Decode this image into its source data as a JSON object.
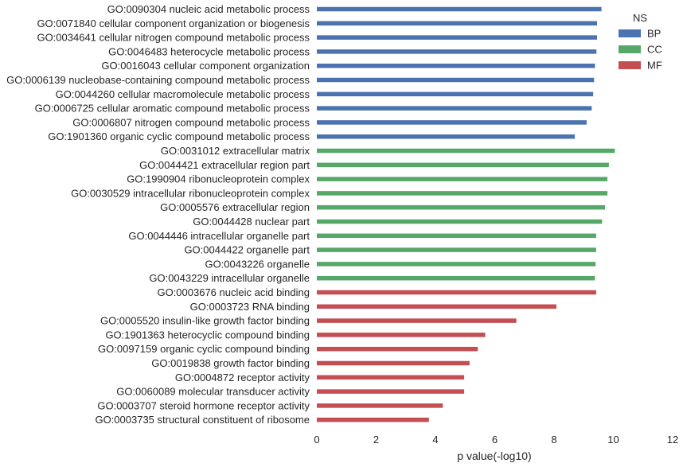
{
  "chart_data": {
    "type": "bar",
    "orientation": "horizontal",
    "xlabel": "p value(-log10)",
    "ylabel": "",
    "xlim": [
      0,
      12
    ],
    "xticks": [
      "0",
      "2",
      "4",
      "6",
      "8",
      "10",
      "12"
    ],
    "grid": false,
    "legend": {
      "title": "NS",
      "placement": "top-right",
      "entries": [
        {
          "name": "BP",
          "color": "#4c72b0"
        },
        {
          "name": "CC",
          "color": "#55a868"
        },
        {
          "name": "MF",
          "color": "#c44e52"
        }
      ]
    },
    "bars": [
      {
        "label": "GO:0090304 nucleic acid metabolic process",
        "ns": "BP",
        "value": 9.6
      },
      {
        "label": "GO:0071840 cellular component organization or biogenesis",
        "ns": "BP",
        "value": 9.45
      },
      {
        "label": "GO:0034641 cellular nitrogen compound metabolic process",
        "ns": "BP",
        "value": 9.45
      },
      {
        "label": "GO:0046483 heterocycle metabolic process",
        "ns": "BP",
        "value": 9.43
      },
      {
        "label": "GO:0016043 cellular component organization",
        "ns": "BP",
        "value": 9.38
      },
      {
        "label": "GO:0006139 nucleobase-containing compound metabolic process",
        "ns": "BP",
        "value": 9.35
      },
      {
        "label": "GO:0044260 cellular macromolecule metabolic process",
        "ns": "BP",
        "value": 9.32
      },
      {
        "label": "GO:0006725 cellular aromatic compound metabolic process",
        "ns": "BP",
        "value": 9.27
      },
      {
        "label": "GO:0006807 nitrogen compound metabolic process",
        "ns": "BP",
        "value": 9.1
      },
      {
        "label": "GO:1901360 organic cyclic compound metabolic process",
        "ns": "BP",
        "value": 8.7
      },
      {
        "label": "GO:0031012 extracellular matrix",
        "ns": "CC",
        "value": 10.05
      },
      {
        "label": "GO:0044421 extracellular region part",
        "ns": "CC",
        "value": 9.85
      },
      {
        "label": "GO:1990904 ribonucleoprotein complex",
        "ns": "CC",
        "value": 9.8
      },
      {
        "label": "GO:0030529 intracellular ribonucleoprotein complex",
        "ns": "CC",
        "value": 9.8
      },
      {
        "label": "GO:0005576 extracellular region",
        "ns": "CC",
        "value": 9.72
      },
      {
        "label": "GO:0044428 nuclear part",
        "ns": "CC",
        "value": 9.62
      },
      {
        "label": "GO:0044446 intracellular organelle part",
        "ns": "CC",
        "value": 9.42
      },
      {
        "label": "GO:0044422 organelle part",
        "ns": "CC",
        "value": 9.42
      },
      {
        "label": "GO:0043226 organelle",
        "ns": "CC",
        "value": 9.4
      },
      {
        "label": "GO:0043229 intracellular organelle",
        "ns": "CC",
        "value": 9.38
      },
      {
        "label": "GO:0003676 nucleic acid binding",
        "ns": "MF",
        "value": 9.42
      },
      {
        "label": "GO:0003723 RNA binding",
        "ns": "MF",
        "value": 8.08
      },
      {
        "label": "GO:0005520 insulin-like growth factor binding",
        "ns": "MF",
        "value": 6.73
      },
      {
        "label": "GO:1901363 heterocyclic compound binding",
        "ns": "MF",
        "value": 5.68
      },
      {
        "label": "GO:0097159 organic cyclic compound binding",
        "ns": "MF",
        "value": 5.43
      },
      {
        "label": "GO:0019838 growth factor binding",
        "ns": "MF",
        "value": 5.15
      },
      {
        "label": "GO:0004872 receptor activity",
        "ns": "MF",
        "value": 4.97
      },
      {
        "label": "GO:0060089 molecular transducer activity",
        "ns": "MF",
        "value": 4.97
      },
      {
        "label": "GO:0003707 steroid hormone receptor activity",
        "ns": "MF",
        "value": 4.25
      },
      {
        "label": "GO:0003735 structural constituent of ribosome",
        "ns": "MF",
        "value": 3.78
      }
    ]
  }
}
